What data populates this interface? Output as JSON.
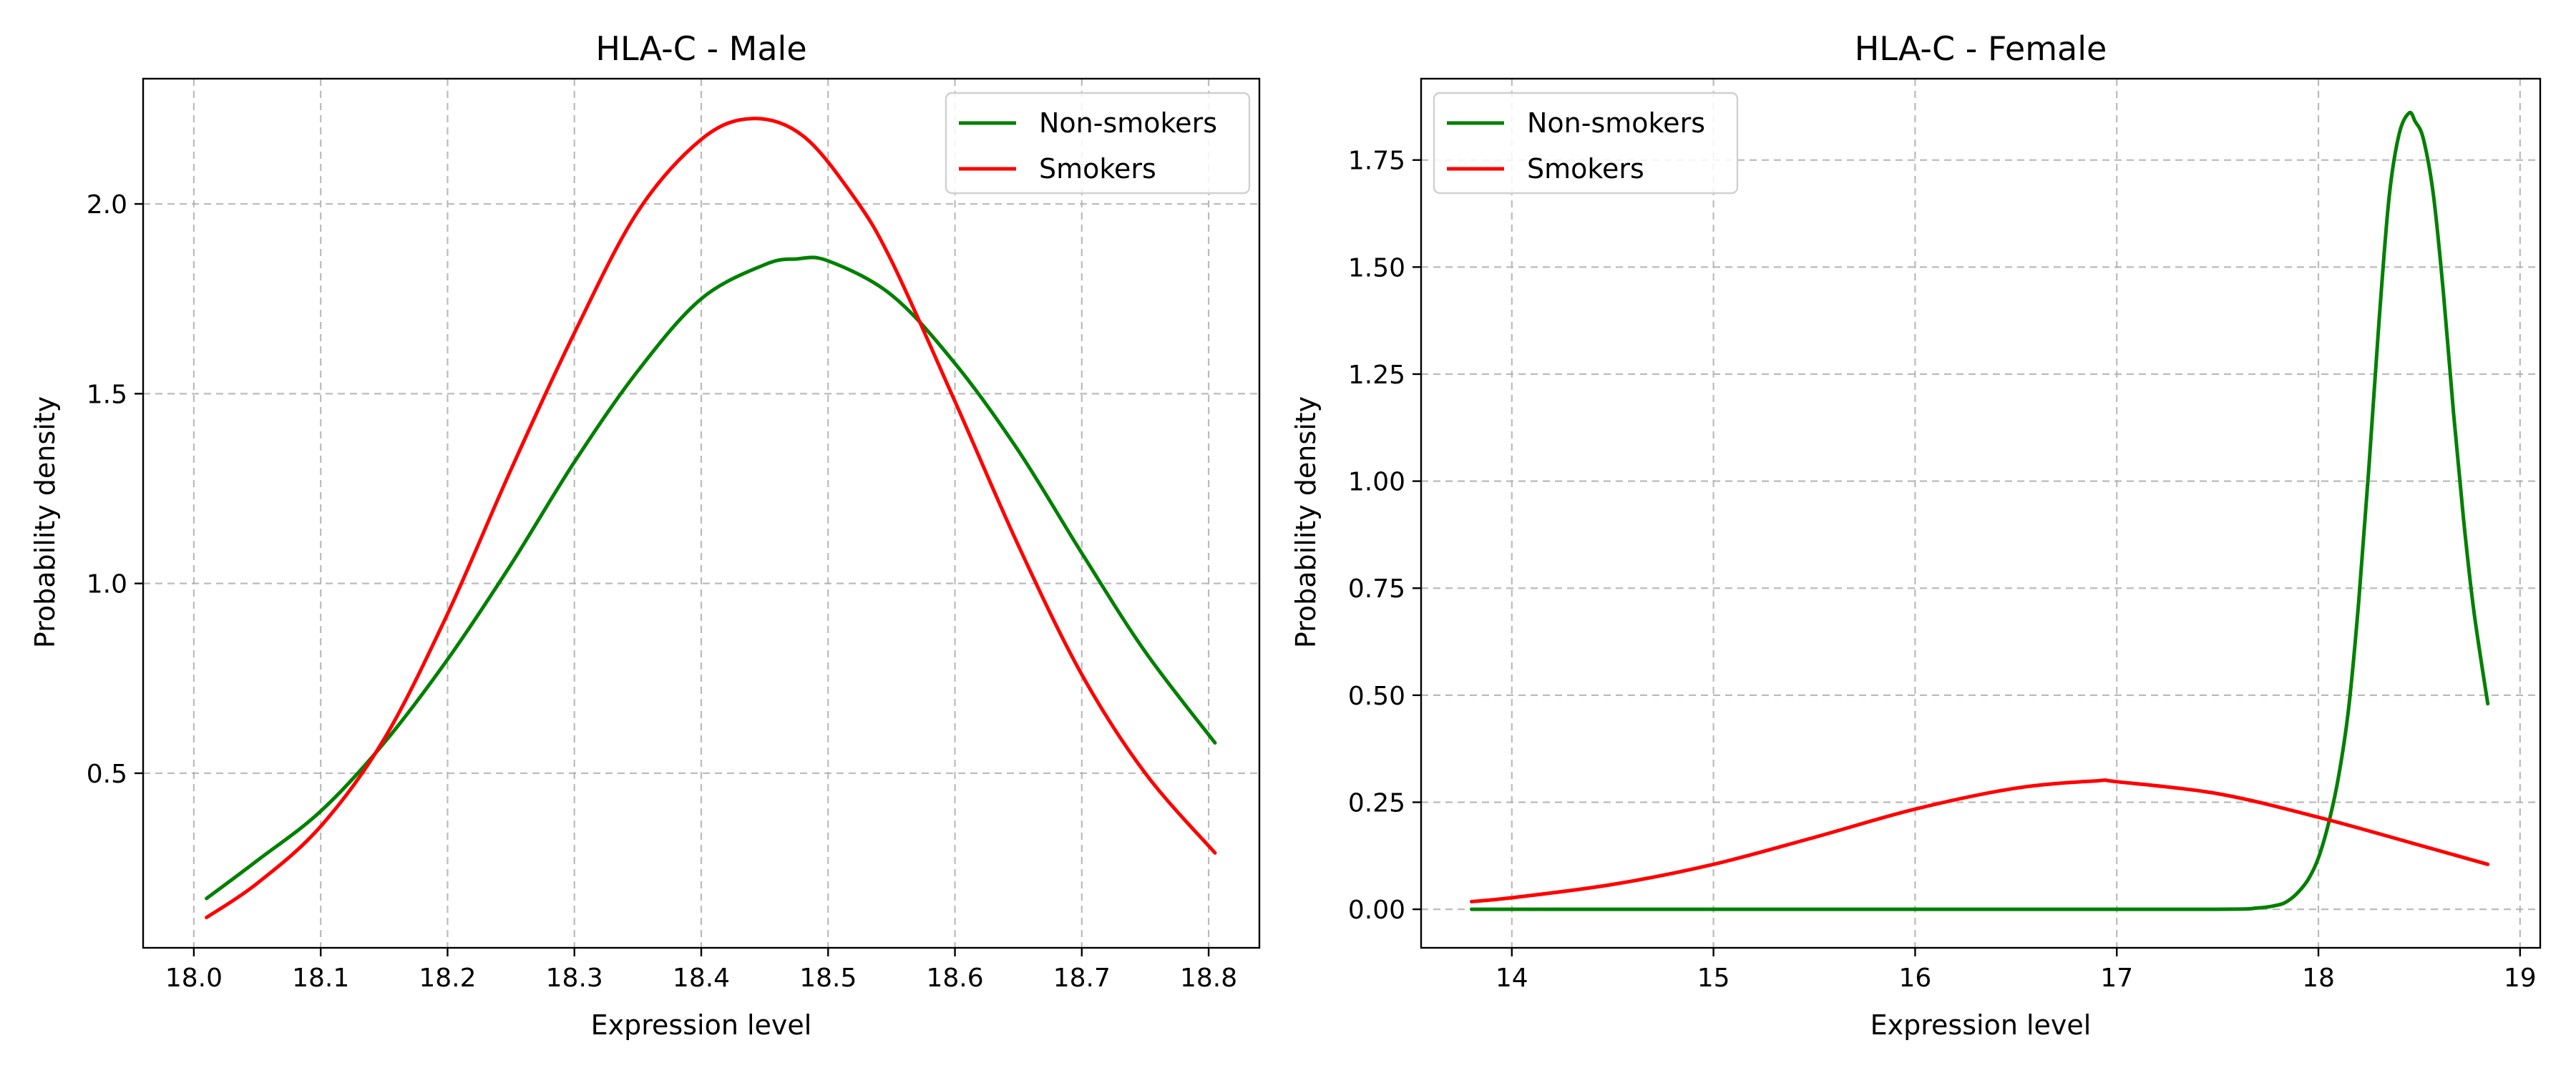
{
  "chart_data": [
    {
      "type": "line",
      "title": "HLA-C - Male",
      "xlabel": "Expression level",
      "ylabel": "Probability density",
      "xlim": [
        17.96,
        18.84
      ],
      "ylim": [
        0.04,
        2.33
      ],
      "xticks": [
        18.0,
        18.1,
        18.2,
        18.3,
        18.4,
        18.5,
        18.6,
        18.7,
        18.8
      ],
      "xtick_labels": [
        "18.0",
        "18.1",
        "18.2",
        "18.3",
        "18.4",
        "18.5",
        "18.6",
        "18.7",
        "18.8"
      ],
      "yticks": [
        0.5,
        1.0,
        1.5,
        2.0
      ],
      "ytick_labels": [
        "0.5",
        "1.0",
        "1.5",
        "2.0"
      ],
      "grid": true,
      "legend_position": "top-right",
      "series": [
        {
          "name": "Non-smokers",
          "color": "#008000",
          "x": [
            18.01,
            18.05,
            18.1,
            18.15,
            18.2,
            18.25,
            18.3,
            18.35,
            18.4,
            18.45,
            18.475,
            18.5,
            18.55,
            18.6,
            18.65,
            18.7,
            18.75,
            18.805
          ],
          "y": [
            0.17,
            0.27,
            0.4,
            0.58,
            0.8,
            1.05,
            1.32,
            1.56,
            1.75,
            1.84,
            1.855,
            1.85,
            1.76,
            1.58,
            1.35,
            1.08,
            0.82,
            0.58
          ]
        },
        {
          "name": "Smokers",
          "color": "#ff0000",
          "x": [
            18.01,
            18.05,
            18.1,
            18.15,
            18.2,
            18.25,
            18.3,
            18.35,
            18.4,
            18.44,
            18.48,
            18.52,
            18.55,
            18.6,
            18.65,
            18.7,
            18.75,
            18.805
          ],
          "y": [
            0.12,
            0.21,
            0.36,
            0.59,
            0.92,
            1.3,
            1.66,
            1.98,
            2.17,
            2.225,
            2.18,
            2.02,
            1.85,
            1.48,
            1.1,
            0.76,
            0.5,
            0.29
          ]
        }
      ]
    },
    {
      "type": "line",
      "title": "HLA-C - Female",
      "xlabel": "Expression level",
      "ylabel": "Probability density",
      "xlim": [
        13.55,
        19.1
      ],
      "ylim": [
        -0.09,
        1.94
      ],
      "xticks": [
        14,
        15,
        16,
        17,
        18,
        19
      ],
      "xtick_labels": [
        "14",
        "15",
        "16",
        "17",
        "18",
        "19"
      ],
      "yticks": [
        0.0,
        0.25,
        0.5,
        0.75,
        1.0,
        1.25,
        1.5,
        1.75
      ],
      "ytick_labels": [
        "0.00",
        "0.25",
        "0.50",
        "0.75",
        "1.00",
        "1.25",
        "1.50",
        "1.75"
      ],
      "grid": true,
      "legend_position": "top-left",
      "series": [
        {
          "name": "Non-smokers",
          "color": "#008000",
          "x": [
            13.8,
            14.5,
            15.5,
            16.5,
            17.5,
            17.7,
            17.8,
            17.85,
            17.9,
            17.95,
            18.0,
            18.05,
            18.1,
            18.15,
            18.2,
            18.25,
            18.3,
            18.35,
            18.4,
            18.45,
            18.48,
            18.52,
            18.57,
            18.62,
            18.67,
            18.72,
            18.77,
            18.84
          ],
          "y": [
            0.0,
            0.0,
            0.0,
            0.0,
            0.0,
            0.003,
            0.01,
            0.02,
            0.04,
            0.07,
            0.12,
            0.2,
            0.31,
            0.47,
            0.72,
            1.03,
            1.37,
            1.66,
            1.81,
            1.86,
            1.84,
            1.8,
            1.67,
            1.44,
            1.16,
            0.91,
            0.7,
            0.48
          ]
        },
        {
          "name": "Smokers",
          "color": "#ff0000",
          "x": [
            13.8,
            14.0,
            14.5,
            15.0,
            15.5,
            16.0,
            16.5,
            16.9,
            17.0,
            17.5,
            18.0,
            18.5,
            18.84
          ],
          "y": [
            0.018,
            0.027,
            0.058,
            0.105,
            0.168,
            0.234,
            0.283,
            0.3,
            0.298,
            0.27,
            0.215,
            0.15,
            0.105
          ]
        }
      ]
    }
  ]
}
